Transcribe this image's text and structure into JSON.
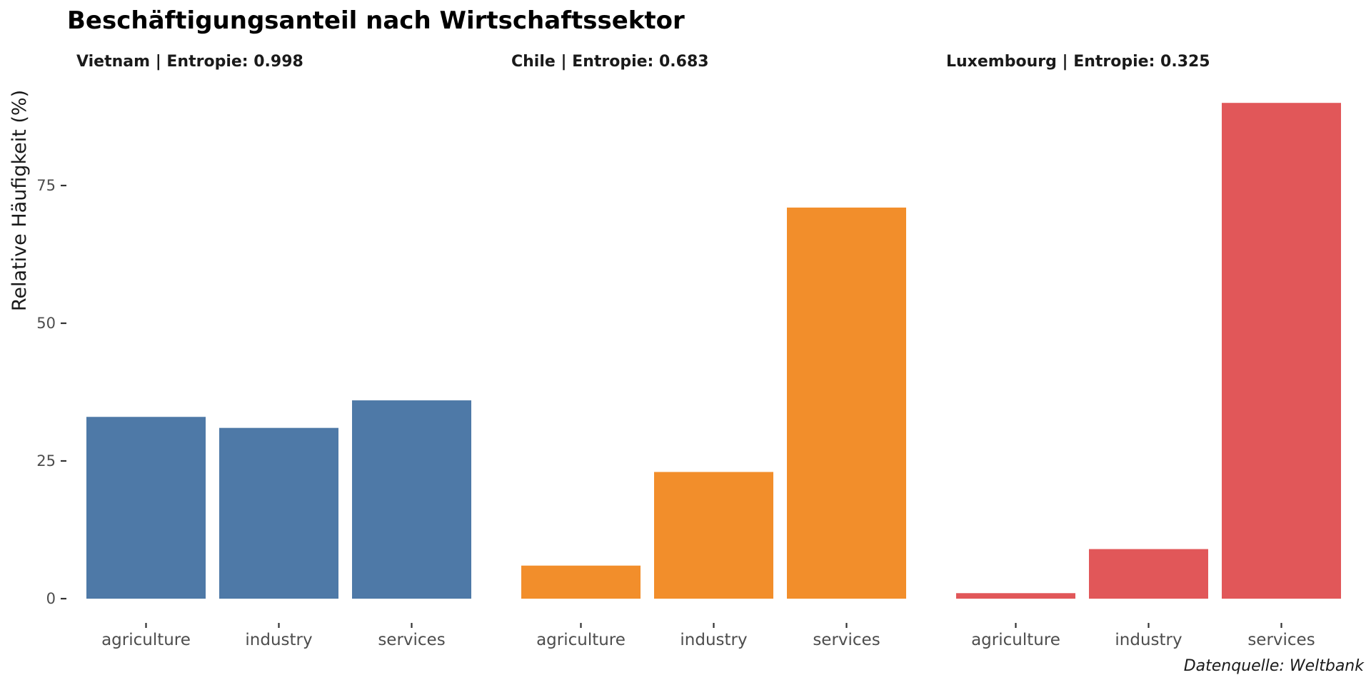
{
  "chart_data": {
    "type": "bar",
    "title": "Beschäftigungsanteil nach Wirtschaftssektor",
    "ylabel": "Relative Häufigkeit (%)",
    "xlabel": "",
    "caption": "Datenquelle: Weltbank",
    "ylim": [
      0,
      90
    ],
    "yticks": [
      0,
      25,
      50,
      75
    ],
    "grid": false,
    "legend": "none",
    "categories": [
      "agriculture",
      "industry",
      "services"
    ],
    "panels": [
      {
        "title": "Vietnam | Entropie:  0.998",
        "color": "#4e79a7",
        "values": [
          33,
          31,
          36
        ]
      },
      {
        "title": "Chile | Entropie:  0.683",
        "color": "#f28e2b",
        "values": [
          6,
          23,
          71
        ]
      },
      {
        "title": "Luxembourg | Entropie:  0.325",
        "color": "#e15759",
        "values": [
          1,
          9,
          90
        ]
      }
    ]
  }
}
